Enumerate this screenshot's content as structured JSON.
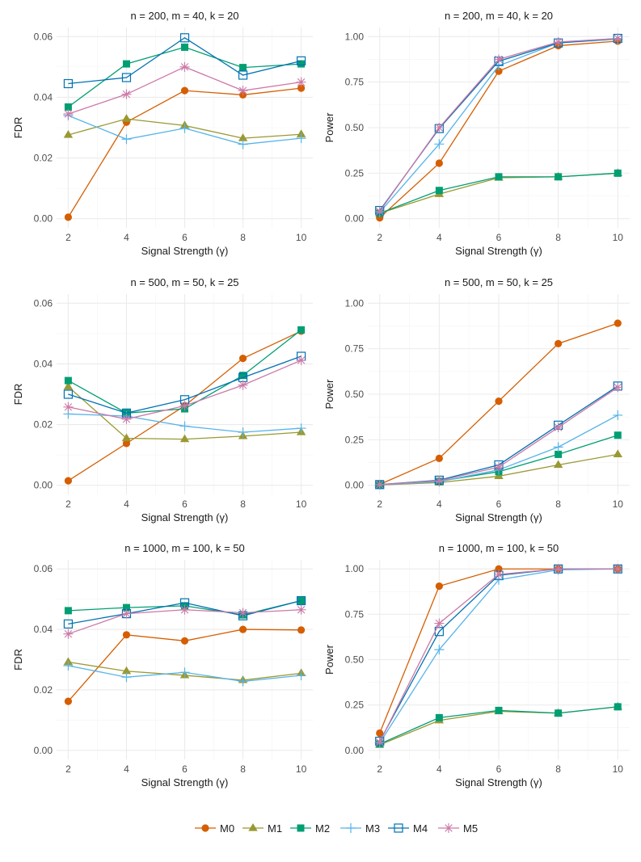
{
  "chart_data": [
    {
      "type": "line",
      "title": "n = 200, m = 40, k = 20",
      "xlabel": "Signal Strength (γ)",
      "ylabel": "FDR",
      "x": [
        2,
        4,
        6,
        8,
        10
      ],
      "xticks": [
        2,
        4,
        6,
        8,
        10
      ],
      "ylim": [
        -0.003,
        0.063
      ],
      "yticks": [
        0.0,
        0.02,
        0.04,
        0.06
      ],
      "ytick_labels": [
        "0.00",
        "0.02",
        "0.04",
        "0.06"
      ],
      "series": [
        {
          "name": "M0",
          "values": [
            0.0005,
            0.0318,
            0.0422,
            0.0408,
            0.043
          ]
        },
        {
          "name": "M1",
          "values": [
            0.0276,
            0.0329,
            0.0307,
            0.0265,
            0.0278
          ]
        },
        {
          "name": "M2",
          "values": [
            0.0368,
            0.051,
            0.0565,
            0.0498,
            0.051
          ]
        },
        {
          "name": "M3",
          "values": [
            0.034,
            0.0262,
            0.0298,
            0.0245,
            0.0265
          ]
        },
        {
          "name": "M4",
          "values": [
            0.0445,
            0.0465,
            0.0596,
            0.0473,
            0.052
          ]
        },
        {
          "name": "M5",
          "values": [
            0.0345,
            0.041,
            0.05,
            0.0422,
            0.045
          ]
        }
      ]
    },
    {
      "type": "line",
      "title": "n = 200, m = 40, k = 20",
      "xlabel": "Signal Strength (γ)",
      "ylabel": "Power",
      "x": [
        2,
        4,
        6,
        8,
        10
      ],
      "xticks": [
        2,
        4,
        6,
        8,
        10
      ],
      "ylim": [
        -0.05,
        1.05
      ],
      "yticks": [
        0.0,
        0.25,
        0.5,
        0.75,
        1.0
      ],
      "ytick_labels": [
        "0.00",
        "0.25",
        "0.50",
        "0.75",
        "1.00"
      ],
      "series": [
        {
          "name": "M0",
          "values": [
            0.005,
            0.305,
            0.81,
            0.95,
            0.975
          ]
        },
        {
          "name": "M1",
          "values": [
            0.03,
            0.135,
            0.225,
            0.23,
            0.25
          ]
        },
        {
          "name": "M2",
          "values": [
            0.03,
            0.155,
            0.23,
            0.23,
            0.25
          ]
        },
        {
          "name": "M3",
          "values": [
            0.035,
            0.41,
            0.84,
            0.965,
            0.985
          ]
        },
        {
          "name": "M4",
          "values": [
            0.045,
            0.495,
            0.865,
            0.965,
            0.99
          ]
        },
        {
          "name": "M5",
          "values": [
            0.04,
            0.5,
            0.875,
            0.97,
            0.99
          ]
        }
      ]
    },
    {
      "type": "line",
      "title": "n = 500, m = 50, k = 25",
      "xlabel": "Signal Strength (γ)",
      "ylabel": "FDR",
      "x": [
        2,
        4,
        6,
        8,
        10
      ],
      "xticks": [
        2,
        4,
        6,
        8,
        10
      ],
      "ylim": [
        -0.003,
        0.063
      ],
      "yticks": [
        0.0,
        0.02,
        0.04,
        0.06
      ],
      "ytick_labels": [
        "0.00",
        "0.02",
        "0.04",
        "0.06"
      ],
      "series": [
        {
          "name": "M0",
          "values": [
            0.0015,
            0.0138,
            0.0262,
            0.0418,
            0.0508
          ]
        },
        {
          "name": "M1",
          "values": [
            0.0325,
            0.0155,
            0.0152,
            0.0162,
            0.0175
          ]
        },
        {
          "name": "M2",
          "values": [
            0.0345,
            0.0238,
            0.0252,
            0.0362,
            0.0512
          ]
        },
        {
          "name": "M3",
          "values": [
            0.0235,
            0.0228,
            0.0195,
            0.0175,
            0.0188
          ]
        },
        {
          "name": "M4",
          "values": [
            0.03,
            0.0238,
            0.0282,
            0.0355,
            0.0425
          ]
        },
        {
          "name": "M5",
          "values": [
            0.0258,
            0.0218,
            0.0262,
            0.033,
            0.0412
          ]
        }
      ]
    },
    {
      "type": "line",
      "title": "n = 500, m = 50, k = 25",
      "xlabel": "Signal Strength (γ)",
      "ylabel": "Power",
      "x": [
        2,
        4,
        6,
        8,
        10
      ],
      "xticks": [
        2,
        4,
        6,
        8,
        10
      ],
      "ylim": [
        -0.05,
        1.05
      ],
      "yticks": [
        0.0,
        0.25,
        0.5,
        0.75,
        1.0
      ],
      "ytick_labels": [
        "0.00",
        "0.25",
        "0.50",
        "0.75",
        "1.00"
      ],
      "series": [
        {
          "name": "M0",
          "values": [
            0.005,
            0.148,
            0.462,
            0.778,
            0.89
          ]
        },
        {
          "name": "M1",
          "values": [
            0.002,
            0.015,
            0.05,
            0.112,
            0.17
          ]
        },
        {
          "name": "M2",
          "values": [
            0.003,
            0.022,
            0.075,
            0.17,
            0.275
          ]
        },
        {
          "name": "M3",
          "values": [
            0.003,
            0.02,
            0.085,
            0.21,
            0.385
          ]
        },
        {
          "name": "M4",
          "values": [
            0.004,
            0.028,
            0.112,
            0.33,
            0.545
          ]
        },
        {
          "name": "M5",
          "values": [
            0.004,
            0.025,
            0.1,
            0.318,
            0.538
          ]
        }
      ]
    },
    {
      "type": "line",
      "title": "n = 1000, m = 100, k = 50",
      "xlabel": "Signal Strength (γ)",
      "ylabel": "FDR",
      "x": [
        2,
        4,
        6,
        8,
        10
      ],
      "xticks": [
        2,
        4,
        6,
        8,
        10
      ],
      "ylim": [
        -0.003,
        0.063
      ],
      "yticks": [
        0.0,
        0.02,
        0.04,
        0.06
      ],
      "ytick_labels": [
        "0.00",
        "0.02",
        "0.04",
        "0.06"
      ],
      "series": [
        {
          "name": "M0",
          "values": [
            0.0162,
            0.0382,
            0.0362,
            0.04,
            0.0398
          ]
        },
        {
          "name": "M1",
          "values": [
            0.0292,
            0.0262,
            0.0248,
            0.0232,
            0.0255
          ]
        },
        {
          "name": "M2",
          "values": [
            0.0462,
            0.0472,
            0.0478,
            0.0448,
            0.0495
          ]
        },
        {
          "name": "M3",
          "values": [
            0.028,
            0.0242,
            0.0258,
            0.0228,
            0.0248
          ]
        },
        {
          "name": "M4",
          "values": [
            0.0418,
            0.0452,
            0.0488,
            0.0445,
            0.0495
          ]
        },
        {
          "name": "M5",
          "values": [
            0.0385,
            0.0452,
            0.0465,
            0.0455,
            0.0465
          ]
        }
      ]
    },
    {
      "type": "line",
      "title": "n = 1000, m = 100, k = 50",
      "xlabel": "Signal Strength (γ)",
      "ylabel": "Power",
      "x": [
        2,
        4,
        6,
        8,
        10
      ],
      "xticks": [
        2,
        4,
        6,
        8,
        10
      ],
      "ylim": [
        -0.05,
        1.05
      ],
      "yticks": [
        0.0,
        0.25,
        0.5,
        0.75,
        1.0
      ],
      "ytick_labels": [
        "0.00",
        "0.25",
        "0.50",
        "0.75",
        "1.00"
      ],
      "series": [
        {
          "name": "M0",
          "values": [
            0.095,
            0.905,
            1.0,
            1.0,
            1.0
          ]
        },
        {
          "name": "M1",
          "values": [
            0.03,
            0.165,
            0.215,
            0.205,
            0.24
          ]
        },
        {
          "name": "M2",
          "values": [
            0.035,
            0.18,
            0.22,
            0.205,
            0.24
          ]
        },
        {
          "name": "M3",
          "values": [
            0.04,
            0.555,
            0.94,
            0.995,
            1.0
          ]
        },
        {
          "name": "M4",
          "values": [
            0.05,
            0.655,
            0.965,
            1.0,
            1.0
          ]
        },
        {
          "name": "M5",
          "values": [
            0.045,
            0.7,
            0.97,
            1.0,
            1.0
          ]
        }
      ]
    }
  ],
  "legend": {
    "position": "bottom",
    "items": [
      {
        "name": "M0",
        "color": "#D55E00",
        "shape": "circle"
      },
      {
        "name": "M1",
        "color": "#999933",
        "shape": "triangle"
      },
      {
        "name": "M2",
        "color": "#009E73",
        "shape": "square-filled"
      },
      {
        "name": "M3",
        "color": "#56B4E9",
        "shape": "plus"
      },
      {
        "name": "M4",
        "color": "#0072B2",
        "shape": "square-open"
      },
      {
        "name": "M5",
        "color": "#CC79A7",
        "shape": "asterisk"
      }
    ]
  }
}
